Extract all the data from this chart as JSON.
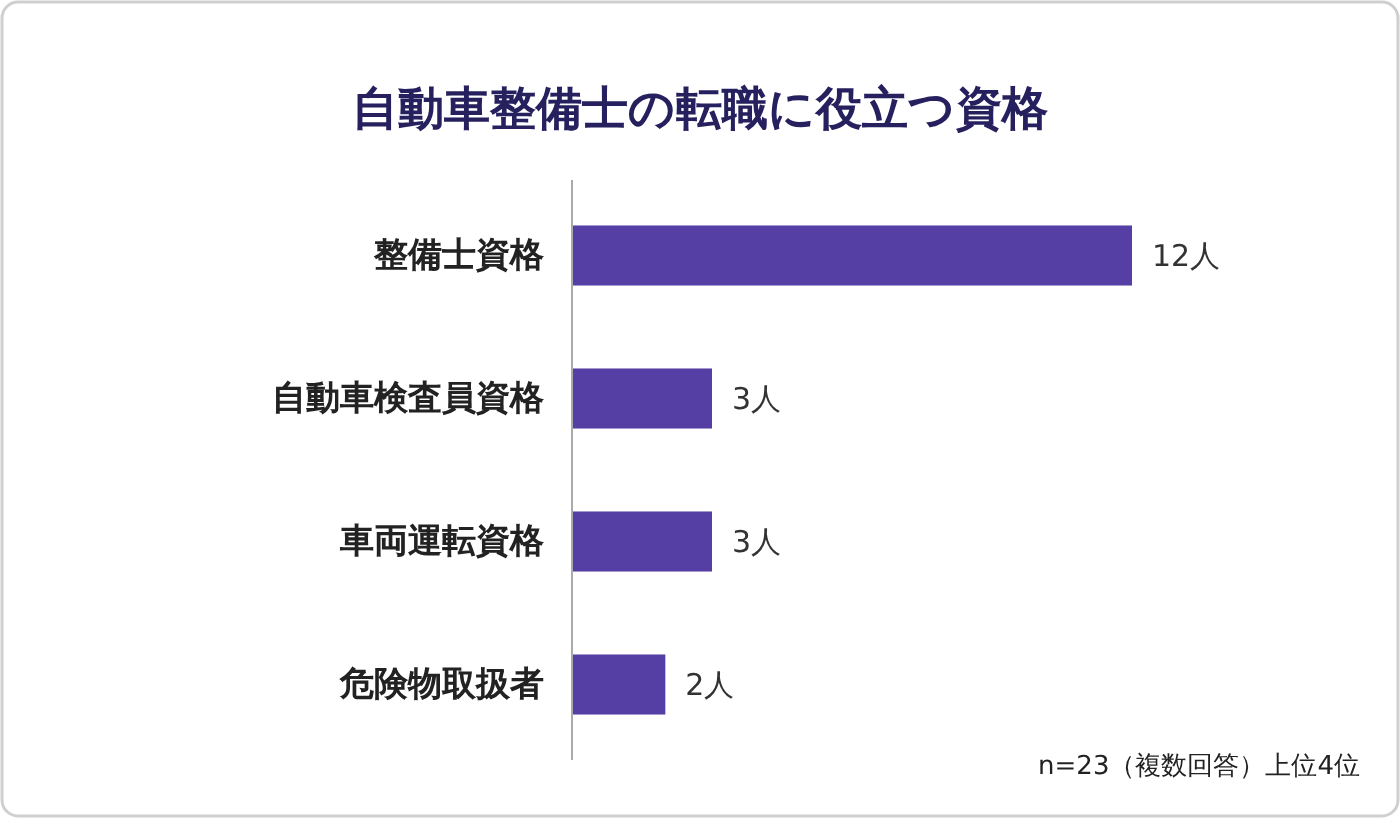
{
  "chart_data": {
    "type": "bar",
    "orientation": "horizontal",
    "title": "自動車整備士の転職に役立つ資格",
    "categories": [
      "整備士資格",
      "自動車検査員資格",
      "車両運転資格",
      "危険物取扱者"
    ],
    "values": [
      12,
      3,
      3,
      2
    ],
    "color": "#553fa5",
    "value_labels": [
      "12人",
      "3人",
      "3人",
      "2人"
    ],
    "annotations": [
      "n=23（複数回答）上位4位"
    ]
  }
}
